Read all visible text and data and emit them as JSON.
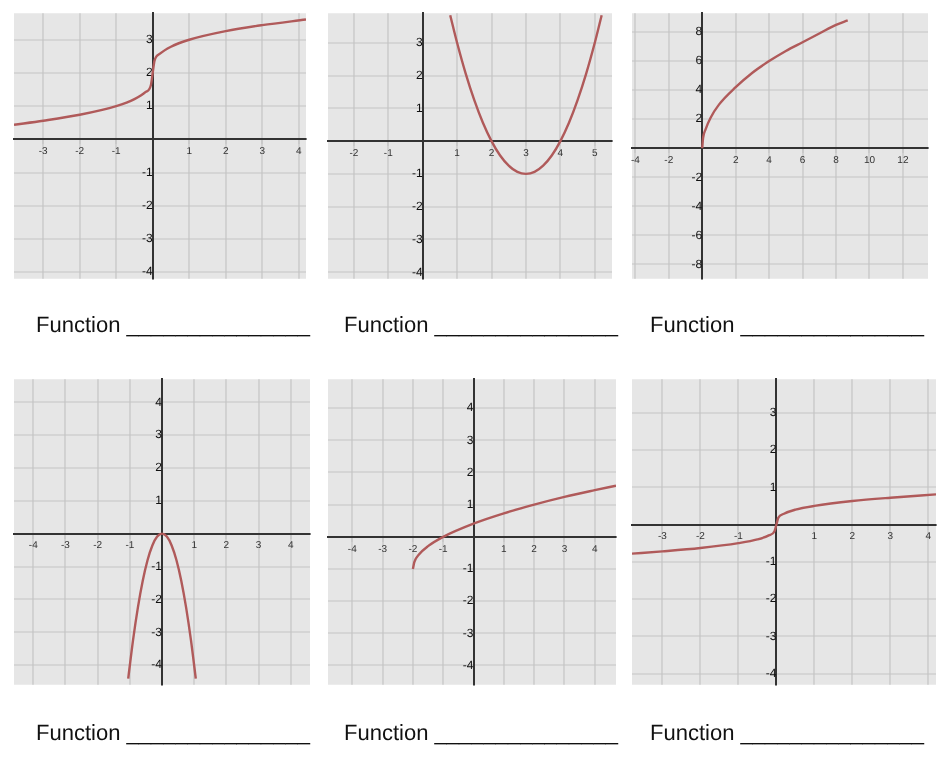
{
  "chart_data": [
    {
      "type": "line",
      "x": [
        -3.8,
        -3,
        -2,
        -1,
        -0.5,
        -0.2,
        -0.05,
        0,
        0.05,
        0.2,
        0.5,
        1,
        2,
        3,
        4.2
      ],
      "values": [
        0.44,
        0.56,
        0.74,
        1,
        1.21,
        1.42,
        1.63,
        2,
        2.37,
        2.58,
        2.79,
        3,
        3.26,
        3.44,
        3.61
      ],
      "color": "#b05a5a",
      "xlim": [
        -3.8,
        4.2
      ],
      "ylim": [
        -4.2,
        3.8
      ],
      "xticks": [
        -3,
        -2,
        -1,
        1,
        2,
        3,
        4
      ],
      "yticks": [
        -4,
        -3,
        -2,
        -1,
        1,
        2,
        3
      ],
      "grid": true,
      "annotations": [
        "Function _______________"
      ]
    },
    {
      "type": "line",
      "x": [
        0.8,
        1,
        1.25,
        1.5,
        1.75,
        2,
        2.25,
        2.5,
        2.75,
        3,
        3.25,
        3.5,
        3.75,
        4,
        4.25,
        4.5,
        4.75,
        5,
        5.2
      ],
      "values": [
        3.84,
        3,
        2.06,
        1.25,
        0.56,
        0,
        -0.44,
        -0.75,
        -0.94,
        -1,
        -0.94,
        -0.75,
        -0.44,
        0,
        0.56,
        1.25,
        2.06,
        3,
        3.84
      ],
      "color": "#b05a5a",
      "xlim": [
        -2.75,
        5.5
      ],
      "ylim": [
        -4.2,
        3.9
      ],
      "xticks": [
        -2,
        -1,
        1,
        2,
        3,
        4,
        5
      ],
      "yticks": [
        -4,
        -3,
        -2,
        -1,
        1,
        2,
        3
      ],
      "grid": true,
      "annotations": [
        "Function _______________"
      ]
    },
    {
      "type": "line",
      "x": [
        0,
        0.05,
        0.2,
        0.5,
        1,
        2,
        3,
        4,
        5,
        6,
        7,
        8,
        8.7
      ],
      "values": [
        0,
        0.7,
        1.3,
        2.1,
        3,
        4.2,
        5.2,
        6,
        6.7,
        7.3,
        7.9,
        8.5,
        8.8
      ],
      "color": "#b05a5a",
      "xlim": [
        -4.2,
        13.5
      ],
      "ylim": [
        -9,
        9.3
      ],
      "xticks": [
        -4,
        -2,
        2,
        4,
        6,
        8,
        10,
        12
      ],
      "yticks": [
        -8,
        -6,
        -4,
        -2,
        2,
        4,
        6,
        8
      ],
      "grid": true,
      "annotations": [
        "Function _______________"
      ]
    },
    {
      "type": "line",
      "x": [
        -1.05,
        -0.9,
        -0.75,
        -0.6,
        -0.45,
        -0.3,
        -0.15,
        0,
        0.15,
        0.3,
        0.45,
        0.6,
        0.75,
        0.9,
        1.05
      ],
      "values": [
        -4.41,
        -3.24,
        -2.25,
        -1.44,
        -0.81,
        -0.36,
        -0.09,
        0,
        -0.09,
        -0.36,
        -0.81,
        -1.44,
        -2.25,
        -3.24,
        -4.41
      ],
      "color": "#b05a5a",
      "xlim": [
        -4.6,
        4.6
      ],
      "ylim": [
        -4.6,
        4.7
      ],
      "xticks": [
        -4,
        -3,
        -2,
        -1,
        1,
        2,
        3,
        4
      ],
      "yticks": [
        -4,
        -3,
        -2,
        -1,
        1,
        2,
        3,
        4
      ],
      "grid": true,
      "annotations": [
        "Function _______________"
      ]
    },
    {
      "type": "line",
      "x": [
        -2,
        -1.95,
        -1.8,
        -1.5,
        -1,
        0,
        1,
        2,
        3,
        4,
        4.7
      ],
      "values": [
        -1,
        -0.78,
        -0.55,
        -0.29,
        0,
        0.41,
        0.73,
        1,
        1.24,
        1.45,
        1.59
      ],
      "color": "#b05a5a",
      "xlim": [
        -4.8,
        4.7
      ],
      "ylim": [
        -4.6,
        4.9
      ],
      "xticks": [
        -4,
        -3,
        -2,
        -1,
        1,
        2,
        3,
        4
      ],
      "yticks": [
        -4,
        -3,
        -2,
        -1,
        1,
        2,
        3,
        4
      ],
      "grid": true,
      "annotations": [
        "Function _______________"
      ]
    },
    {
      "type": "line",
      "x": [
        -3.8,
        -3,
        -2,
        -1,
        -0.5,
        -0.2,
        -0.05,
        0,
        0.05,
        0.2,
        0.5,
        1,
        2,
        3,
        4.2
      ],
      "values": [
        -0.78,
        -0.72,
        -0.63,
        -0.5,
        -0.4,
        -0.29,
        -0.18,
        0,
        0.18,
        0.29,
        0.4,
        0.5,
        0.63,
        0.72,
        0.81
      ],
      "color": "#b05a5a",
      "xlim": [
        -3.8,
        4.2
      ],
      "ylim": [
        -4.3,
        3.9
      ],
      "xticks": [
        -3,
        -2,
        -1,
        1,
        2,
        3,
        4
      ],
      "yticks": [
        -4,
        -3,
        -2,
        -1,
        1,
        2,
        3
      ],
      "grid": true,
      "annotations": [
        "Function _______________"
      ]
    }
  ]
}
